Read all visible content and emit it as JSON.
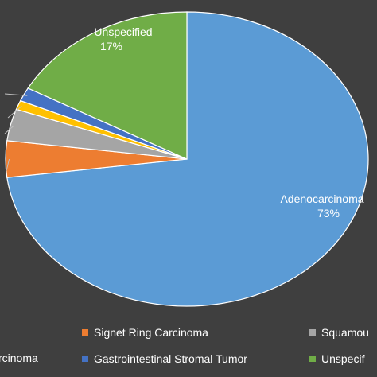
{
  "chart_data": {
    "type": "pie",
    "slices": [
      {
        "label": "Adenocarcinoma",
        "value": 73,
        "pct_label": "73%",
        "color": "#5b9bd5"
      },
      {
        "label": "Signet Ring Carcinoma",
        "value": 4,
        "color": "#ed7d31"
      },
      {
        "label": "Squamous",
        "value": 3.5,
        "color": "#a5a5a5"
      },
      {
        "label": "",
        "value": 1,
        "color": "#ffc000"
      },
      {
        "label": "Gastrointestinal Stromal Tumor",
        "value": 1.5,
        "color": "#4472c4"
      },
      {
        "label": "Unspecified",
        "value": 17,
        "pct_label": "17%",
        "color": "#70ad47"
      }
    ],
    "data_labels": [
      {
        "text": "Adenocarcinoma",
        "pct": "73%"
      },
      {
        "text": "Unspecified",
        "pct": "17%"
      }
    ],
    "legend": {
      "placement": "bottom",
      "items": [
        {
          "label": "Signet Ring Carcinoma",
          "color": "#ed7d31"
        },
        {
          "label": "Squamou",
          "color": "#a5a5a5"
        },
        {
          "label": "rcinoma",
          "color": null
        },
        {
          "label": "Gastrointestinal Stromal Tumor",
          "color": "#4472c4"
        },
        {
          "label": "Unspecif",
          "color": "#70ad47"
        }
      ]
    }
  }
}
